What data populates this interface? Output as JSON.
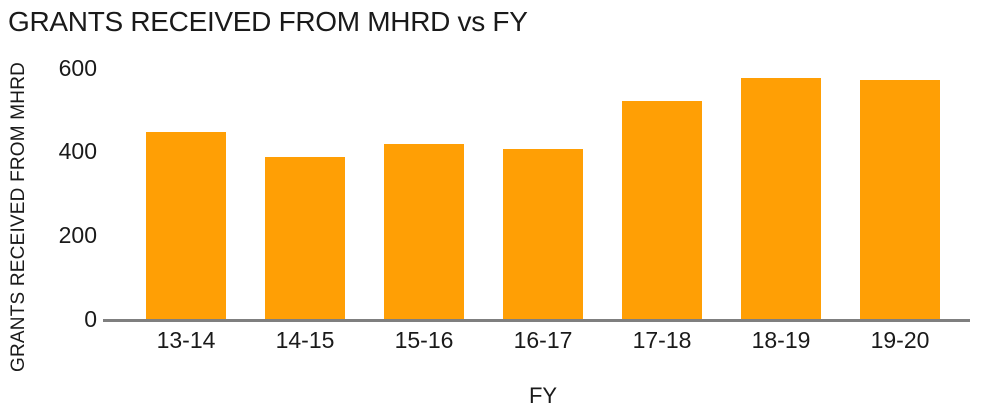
{
  "title": "GRANTS RECEIVED FROM MHRD vs FY",
  "colors": {
    "bar": "#FF9F05",
    "axis_line": "#7F7F7F",
    "text": "#1A1A1A",
    "background": "#FFFFFF"
  },
  "chart_data": {
    "type": "bar",
    "title": "GRANTS RECEIVED FROM MHRD vs FY",
    "categories": [
      "13-14",
      "14-15",
      "15-16",
      "16-17",
      "17-18",
      "18-19",
      "19-20"
    ],
    "values": [
      450,
      390,
      420,
      410,
      525,
      580,
      575
    ],
    "xlabel": "FY",
    "ylabel": "GRANTS RECEIVED FROM MHRD",
    "ylim": [
      0,
      600
    ],
    "yticks": [
      0,
      200,
      400,
      600
    ],
    "grid": false,
    "legend": false,
    "bar_color": "#FF9F05"
  }
}
